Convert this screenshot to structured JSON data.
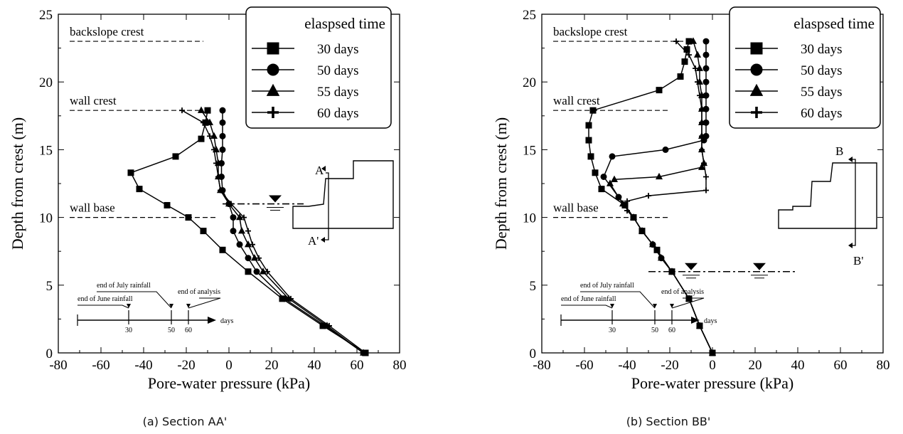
{
  "colors": {
    "ink": "#000000",
    "background": "#ffffff"
  },
  "icons": {
    "markers": [
      "square-marker-icon",
      "circle-marker-icon",
      "triangle-marker-icon",
      "plus-marker-icon"
    ],
    "water_table": "water-table-symbol-icon"
  },
  "chart_data": [
    {
      "type": "line",
      "caption": "(a) Section AA'",
      "xlabel": "Pore-water pressure (kPa)",
      "ylabel": "Depth from crest (m)",
      "xlim": [
        -80,
        80
      ],
      "ylim": [
        0,
        25
      ],
      "xticks": [
        -80,
        -60,
        -40,
        -20,
        0,
        20,
        40,
        60,
        80
      ],
      "yticks": [
        0,
        5,
        10,
        15,
        20,
        25
      ],
      "grid": false,
      "legend": {
        "placement": "top-right",
        "title": "elaspsed time"
      },
      "annotations": [
        {
          "text": "backslope crest",
          "y": 23,
          "x_from": -80,
          "x_to": -12
        },
        {
          "text": "wall crest",
          "y": 17.9,
          "x_from": -80,
          "x_to": -12
        },
        {
          "text": "wall base",
          "y": 10,
          "x_from": -80,
          "x_to": -5
        }
      ],
      "section_marks": {
        "top": "A",
        "bottom": "A'"
      },
      "water_table": {
        "y": 11,
        "x_from": -3,
        "x_to": 25
      },
      "timeline": {
        "ticks": [
          "30",
          "50",
          "60"
        ],
        "unit": "days",
        "labels": [
          "end of June rainfall",
          "end of July rainfall",
          "end of analysis"
        ]
      },
      "series": [
        {
          "name": "30 days",
          "marker": "square",
          "y": [
            17.9,
            17.0,
            15.8,
            14.5,
            13.3,
            12.1,
            10.9,
            10.0,
            9.0,
            7.6,
            6.0,
            4.0,
            2.0,
            0
          ],
          "x": [
            -10,
            -11,
            -13,
            -25,
            -46,
            -42,
            -29,
            -19,
            -12,
            -3,
            9,
            25,
            44,
            64
          ]
        },
        {
          "name": "50 days",
          "marker": "circle",
          "y": [
            17.9,
            17.0,
            16.0,
            15.0,
            14.0,
            13.0,
            12.0,
            11.0,
            10.0,
            9.0,
            8.0,
            7.0,
            6.0,
            4.0,
            2.0,
            0
          ],
          "x": [
            -3,
            -3,
            -3,
            -3,
            -3.5,
            -3.5,
            -3,
            0,
            2,
            2,
            5,
            9,
            13,
            26,
            45,
            63
          ]
        },
        {
          "name": "55 days",
          "marker": "triangle",
          "y": [
            17.9,
            17.0,
            16.0,
            15.0,
            14.0,
            13.0,
            12.0,
            11.0,
            10.0,
            9.0,
            8.0,
            7.0,
            6.0,
            4.0,
            2.0,
            0
          ],
          "x": [
            -13,
            -9,
            -7,
            -6,
            -5,
            -5,
            -4,
            0,
            5,
            6,
            9,
            12,
            16,
            28,
            46,
            63
          ]
        },
        {
          "name": "60 days",
          "marker": "plus",
          "y": [
            17.9,
            17.0,
            16.0,
            15.0,
            14.0,
            13.0,
            12.0,
            11.0,
            10.0,
            9.0,
            8.0,
            7.0,
            6.0,
            4.0,
            2.0,
            0
          ],
          "x": [
            -22,
            -12,
            -9,
            -7,
            -6,
            -5,
            -4,
            1,
            7,
            9,
            11,
            14,
            18,
            29,
            47,
            64
          ]
        }
      ]
    },
    {
      "type": "line",
      "caption": "(b) Section BB'",
      "xlabel": "Pore-water pressure (kPa)",
      "ylabel": "Depth from crest (m)",
      "xlim": [
        -80,
        80
      ],
      "ylim": [
        0,
        25
      ],
      "xticks": [
        -80,
        -60,
        -40,
        -20,
        0,
        20,
        40,
        60,
        80
      ],
      "yticks": [
        0,
        5,
        10,
        15,
        20,
        25
      ],
      "grid": false,
      "legend": {
        "placement": "top-right",
        "title": "elaspsed time"
      },
      "annotations": [
        {
          "text": "backslope crest",
          "y": 23,
          "x_from": -80,
          "x_to": -10
        },
        {
          "text": "wall crest",
          "y": 17.9,
          "x_from": -80,
          "x_to": -20
        },
        {
          "text": "wall base",
          "y": 10,
          "x_from": -80,
          "x_to": -20
        }
      ],
      "section_marks": {
        "top": "B",
        "bottom": "B'"
      },
      "water_table": {
        "y": 6,
        "x_from": -30,
        "x_to": 30
      },
      "timeline": {
        "ticks": [
          "30",
          "50",
          "60"
        ],
        "unit": "days",
        "labels": [
          "end of June rainfall",
          "end of July rainfall",
          "end of analysis"
        ]
      },
      "series": [
        {
          "name": "30 days",
          "marker": "square",
          "y": [
            23,
            22.4,
            21.5,
            20.4,
            19.4,
            17.9,
            16.8,
            15.7,
            14.5,
            13.3,
            12.1,
            10.9,
            10.0,
            9.0,
            7.6,
            6.0,
            4.0,
            2.0,
            0
          ],
          "x": [
            -11,
            -12,
            -13,
            -15,
            -25,
            -56,
            -58,
            -58,
            -57,
            -55,
            -52,
            -41,
            -37,
            -33,
            -26,
            -19,
            -11,
            -6,
            0
          ]
        },
        {
          "name": "50 days",
          "marker": "circle",
          "y": [
            23,
            22,
            21,
            20,
            19,
            18,
            17,
            16,
            15.7,
            15.0,
            14.5,
            13,
            11.5,
            10.9,
            10.0,
            9.0,
            8.0,
            7.0,
            6.0,
            4.0,
            2.0,
            0
          ],
          "x": [
            -3,
            -3,
            -3,
            -3,
            -3,
            -3,
            -3,
            -3,
            -4,
            -22,
            -47,
            -51,
            -44,
            -41,
            -37,
            -33,
            -28,
            -24,
            -19,
            -11,
            -6,
            0
          ]
        },
        {
          "name": "55 days",
          "marker": "triangle",
          "y": [
            23,
            22,
            21,
            20,
            19,
            18,
            17,
            16,
            15,
            14,
            13.7,
            13,
            12.8,
            12.5,
            11,
            10,
            9,
            8,
            7,
            6,
            4,
            2,
            0
          ],
          "x": [
            -9,
            -7,
            -6,
            -6,
            -5,
            -5,
            -5,
            -5,
            -5,
            -4,
            -5,
            -25,
            -46,
            -48,
            -42,
            -37,
            -33,
            -28,
            -24,
            -19,
            -11,
            -6,
            0
          ]
        },
        {
          "name": "60 days",
          "marker": "plus",
          "y": [
            23,
            22,
            21,
            20,
            19,
            18,
            17,
            16,
            15,
            14,
            13,
            12,
            11.6,
            11.2,
            10.5,
            10,
            9,
            8,
            7,
            6,
            4,
            2,
            0
          ],
          "x": [
            -17,
            -11,
            -8,
            -7,
            -6,
            -5,
            -5,
            -5,
            -5,
            -4,
            -3,
            -3,
            -30,
            -40,
            -40,
            -37,
            -33,
            -28,
            -24,
            -19,
            -11,
            -6,
            0
          ]
        }
      ]
    }
  ]
}
